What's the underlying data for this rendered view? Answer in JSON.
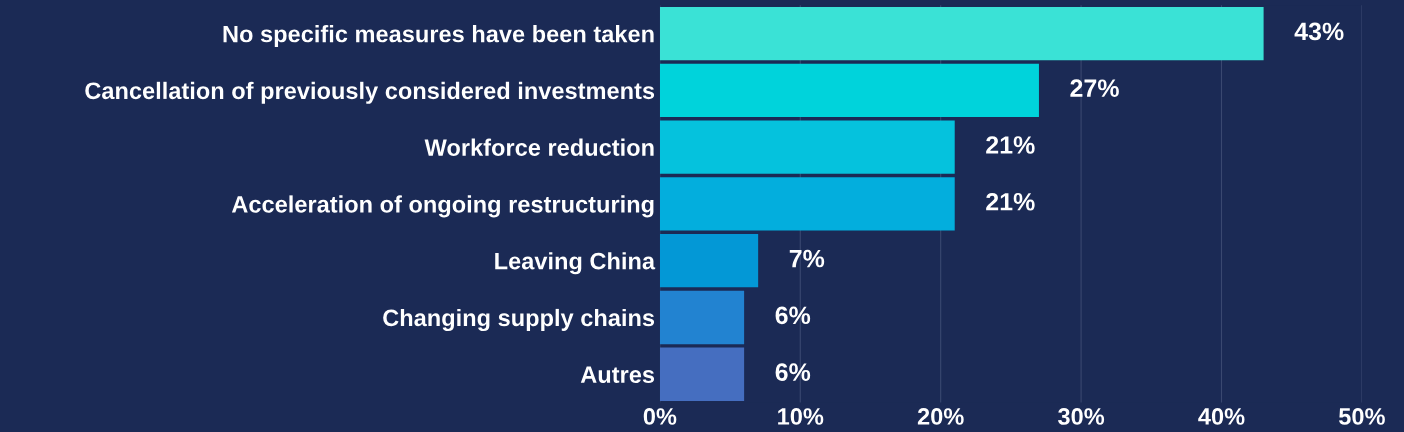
{
  "chart_data": {
    "type": "bar",
    "orientation": "horizontal",
    "categories": [
      "No specific measures have been taken",
      "Cancellation of previously considered investments",
      "Workforce reduction",
      "Acceleration of ongoing restructuring",
      "Leaving China",
      "Changing supply chains",
      "Autres"
    ],
    "values": [
      43,
      27,
      21,
      21,
      7,
      6,
      6
    ],
    "colors": [
      "#3ae2d6",
      "#00d3db",
      "#05c2dd",
      "#03aedd",
      "#0398d6",
      "#2283d1",
      "#456ec0"
    ],
    "value_labels": [
      "43%",
      "27%",
      "21%",
      "21%",
      "7%",
      "6%",
      "6%"
    ],
    "xlim": [
      0,
      50
    ],
    "xticks": [
      {
        "value": 0,
        "label": "0%"
      },
      {
        "value": 10,
        "label": "10%"
      },
      {
        "value": 20,
        "label": "20%"
      },
      {
        "value": 30,
        "label": "30%"
      },
      {
        "value": 40,
        "label": "40%"
      },
      {
        "value": 50,
        "label": "50%"
      }
    ],
    "grid": "x",
    "legend": false
  }
}
